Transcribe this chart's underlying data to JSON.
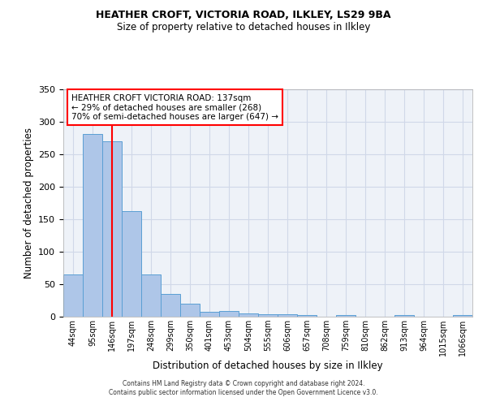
{
  "title1": "HEATHER CROFT, VICTORIA ROAD, ILKLEY, LS29 9BA",
  "title2": "Size of property relative to detached houses in Ilkley",
  "xlabel": "Distribution of detached houses by size in Ilkley",
  "ylabel": "Number of detached properties",
  "categories": [
    "44sqm",
    "95sqm",
    "146sqm",
    "197sqm",
    "248sqm",
    "299sqm",
    "350sqm",
    "401sqm",
    "453sqm",
    "504sqm",
    "555sqm",
    "606sqm",
    "657sqm",
    "708sqm",
    "759sqm",
    "810sqm",
    "862sqm",
    "913sqm",
    "964sqm",
    "1015sqm",
    "1066sqm"
  ],
  "values": [
    65,
    281,
    270,
    163,
    65,
    35,
    20,
    8,
    9,
    5,
    4,
    4,
    2,
    0,
    3,
    0,
    0,
    2,
    0,
    0,
    2
  ],
  "bar_color": "#aec6e8",
  "bar_edge_color": "#5a9fd4",
  "grid_color": "#d0d8e8",
  "background_color": "#eef2f8",
  "vline_x": 2,
  "vline_color": "red",
  "annotation_text": "HEATHER CROFT VICTORIA ROAD: 137sqm\n← 29% of detached houses are smaller (268)\n70% of semi-detached houses are larger (647) →",
  "annotation_box_color": "white",
  "annotation_box_edge_color": "red",
  "footer_text": "Contains HM Land Registry data © Crown copyright and database right 2024.\nContains public sector information licensed under the Open Government Licence v3.0.",
  "ylim": [
    0,
    350
  ],
  "yticks": [
    0,
    50,
    100,
    150,
    200,
    250,
    300,
    350
  ]
}
